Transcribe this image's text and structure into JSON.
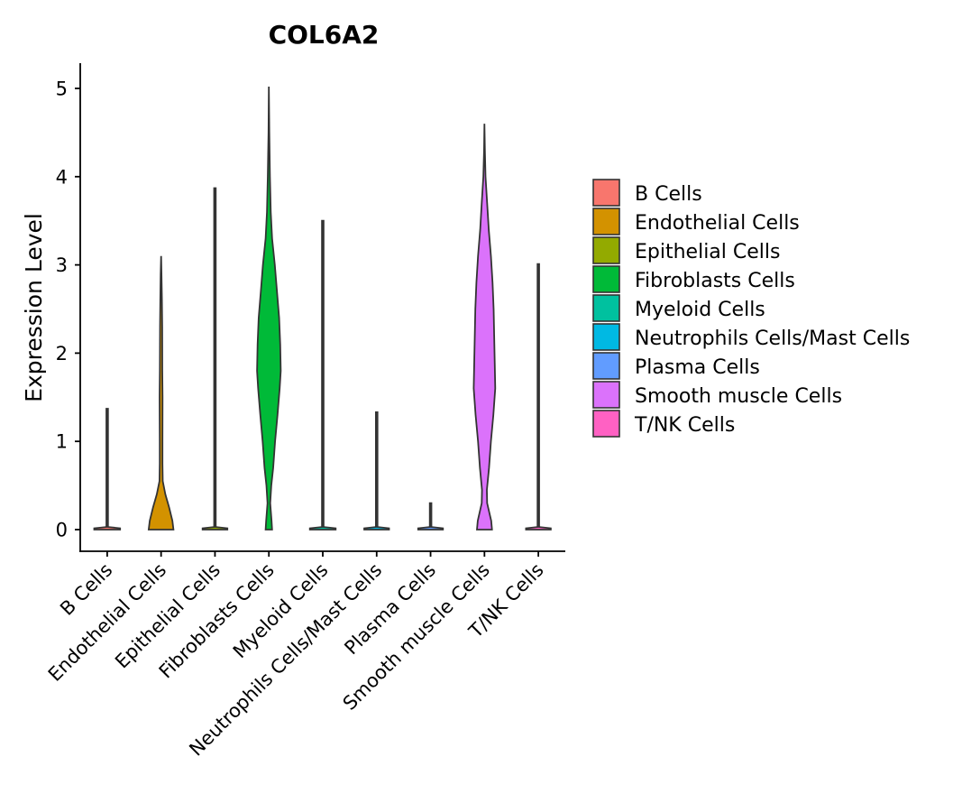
{
  "chart_data": {
    "type": "violin",
    "title": "COL6A2",
    "xlabel": "",
    "ylabel": "Expression Level",
    "ylim": [
      -0.25,
      5.3
    ],
    "yticks": [
      0,
      1,
      2,
      3,
      4,
      5
    ],
    "categories": [
      "B Cells",
      "Endothelial Cells",
      "Epithelial Cells",
      "Fibroblasts Cells",
      "Myeloid Cells",
      "Neutrophils Cells/Mast Cells",
      "Plasma Cells",
      "Smooth muscle Cells",
      "T/NK Cells"
    ],
    "colors": [
      "#F8766D",
      "#D39200",
      "#93AA00",
      "#00BA38",
      "#00C19F",
      "#00B9E3",
      "#619CFF",
      "#DB72FB",
      "#FF61C3"
    ],
    "legend_position": "right",
    "series": [
      {
        "name": "B Cells",
        "max": 1.37,
        "profile": [
          [
            0,
            0.48
          ],
          [
            0.015,
            0.48
          ],
          [
            0.03,
            0.03
          ],
          [
            1.37,
            0.03
          ]
        ]
      },
      {
        "name": "Endothelial Cells",
        "max": 3.1,
        "profile": [
          [
            0,
            0.46
          ],
          [
            0.1,
            0.42
          ],
          [
            0.25,
            0.3
          ],
          [
            0.4,
            0.16
          ],
          [
            0.55,
            0.06
          ],
          [
            0.75,
            0.05
          ],
          [
            1.0,
            0.05
          ],
          [
            1.5,
            0.055
          ],
          [
            1.8,
            0.045
          ],
          [
            2.3,
            0.04
          ],
          [
            2.6,
            0.03
          ],
          [
            2.9,
            0.015
          ],
          [
            3.1,
            0.0
          ]
        ]
      },
      {
        "name": "Epithelial Cells",
        "max": 3.87,
        "profile": [
          [
            0,
            0.46
          ],
          [
            0.015,
            0.46
          ],
          [
            0.03,
            0.03
          ],
          [
            3.87,
            0.03
          ]
        ]
      },
      {
        "name": "Fibroblasts Cells",
        "max": 5.02,
        "profile": [
          [
            0,
            0.12
          ],
          [
            0.1,
            0.1
          ],
          [
            0.3,
            0.05
          ],
          [
            0.5,
            0.09
          ],
          [
            0.7,
            0.16
          ],
          [
            1.0,
            0.23
          ],
          [
            1.3,
            0.32
          ],
          [
            1.6,
            0.4
          ],
          [
            1.8,
            0.44
          ],
          [
            2.1,
            0.42
          ],
          [
            2.4,
            0.38
          ],
          [
            2.7,
            0.3
          ],
          [
            3.0,
            0.22
          ],
          [
            3.3,
            0.12
          ],
          [
            3.6,
            0.07
          ],
          [
            4.0,
            0.04
          ],
          [
            4.5,
            0.015
          ],
          [
            5.02,
            0.0
          ]
        ]
      },
      {
        "name": "Myeloid Cells",
        "max": 3.5,
        "profile": [
          [
            0,
            0.48
          ],
          [
            0.015,
            0.48
          ],
          [
            0.03,
            0.03
          ],
          [
            3.5,
            0.03
          ]
        ]
      },
      {
        "name": "Neutrophils Cells/Mast Cells",
        "max": 1.33,
        "profile": [
          [
            0,
            0.46
          ],
          [
            0.015,
            0.46
          ],
          [
            0.03,
            0.03
          ],
          [
            1.33,
            0.03
          ]
        ]
      },
      {
        "name": "Plasma Cells",
        "max": 0.3,
        "profile": [
          [
            0,
            0.46
          ],
          [
            0.015,
            0.46
          ],
          [
            0.03,
            0.03
          ],
          [
            0.3,
            0.03
          ]
        ]
      },
      {
        "name": "Smooth muscle Cells",
        "max": 4.6,
        "profile": [
          [
            0,
            0.28
          ],
          [
            0.1,
            0.25
          ],
          [
            0.3,
            0.1
          ],
          [
            0.45,
            0.09
          ],
          [
            0.7,
            0.17
          ],
          [
            1.0,
            0.24
          ],
          [
            1.3,
            0.33
          ],
          [
            1.6,
            0.4
          ],
          [
            1.9,
            0.38
          ],
          [
            2.2,
            0.36
          ],
          [
            2.5,
            0.34
          ],
          [
            2.8,
            0.3
          ],
          [
            3.1,
            0.24
          ],
          [
            3.4,
            0.16
          ],
          [
            3.7,
            0.1
          ],
          [
            4.0,
            0.04
          ],
          [
            4.3,
            0.015
          ],
          [
            4.6,
            0.0
          ]
        ]
      },
      {
        "name": "T/NK Cells",
        "max": 3.01,
        "profile": [
          [
            0,
            0.46
          ],
          [
            0.015,
            0.46
          ],
          [
            0.03,
            0.03
          ],
          [
            3.01,
            0.03
          ]
        ]
      }
    ]
  }
}
